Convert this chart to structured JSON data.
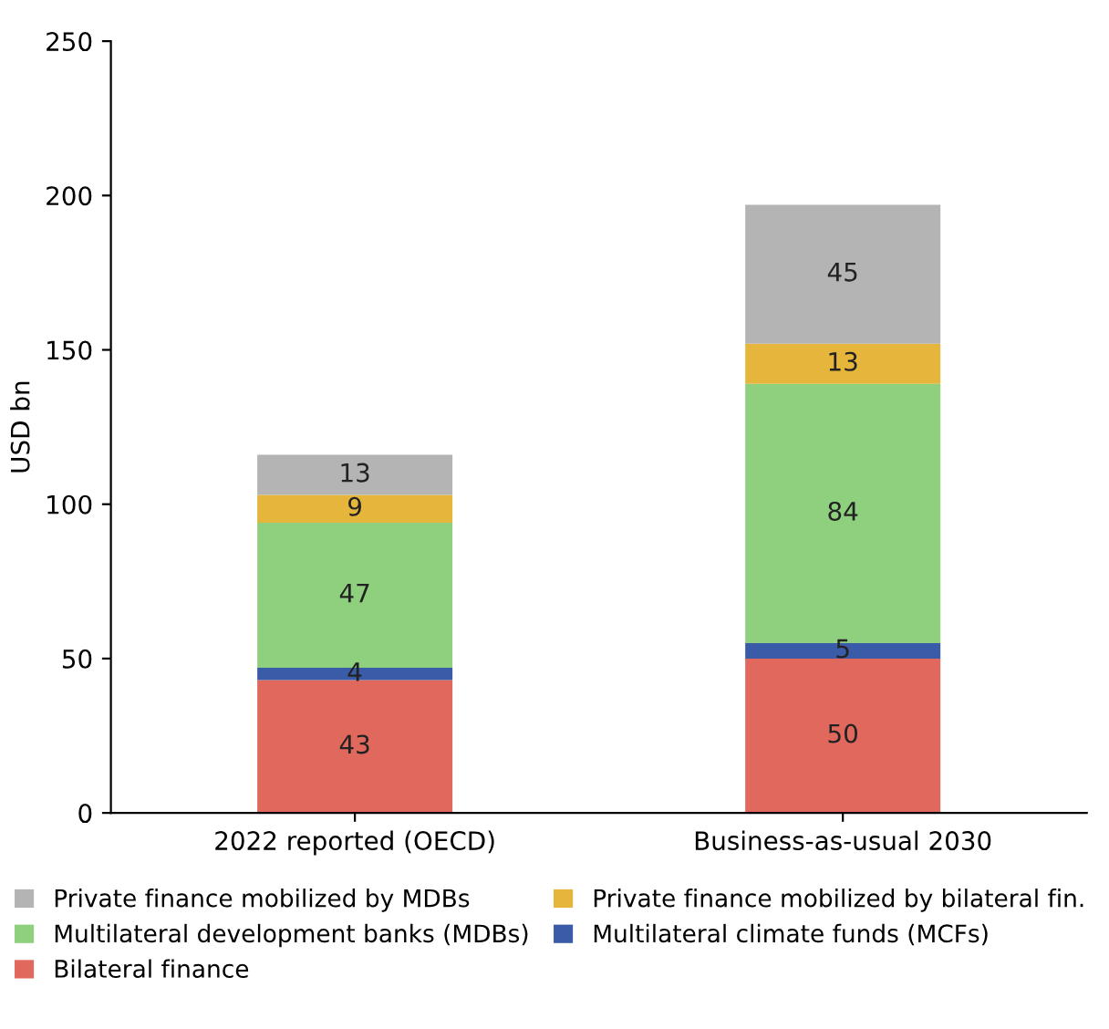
{
  "chart_data": {
    "type": "bar",
    "stacked": true,
    "ylabel": "USD bn",
    "categories": [
      "2022 reported (OECD)",
      "Business-as-usual 2030"
    ],
    "series": [
      {
        "name": "Bilateral finance",
        "color": "#e0685c",
        "values": [
          43,
          50
        ]
      },
      {
        "name": "Multilateral climate funds (MCFs)",
        "color": "#3a5ca8",
        "values": [
          4,
          5
        ]
      },
      {
        "name": "Multilateral development banks (MDBs)",
        "color": "#8fd07e",
        "values": [
          47,
          84
        ]
      },
      {
        "name": "Private finance mobilized by bilateral fin.",
        "color": "#e5b53c",
        "values": [
          9,
          13
        ]
      },
      {
        "name": "Private finance mobilized by MDBs",
        "color": "#b4b4b4",
        "values": [
          13,
          45
        ]
      }
    ],
    "data_labels": true,
    "ylim": [
      0,
      250
    ],
    "yticks": [
      0,
      50,
      100,
      150,
      200,
      250
    ],
    "grid": false,
    "legend": "bottom"
  }
}
